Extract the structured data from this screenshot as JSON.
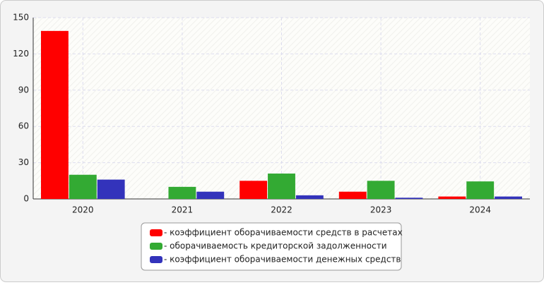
{
  "chart_data": {
    "type": "bar",
    "categories": [
      "2020",
      "2021",
      "2022",
      "2023",
      "2024"
    ],
    "series": [
      {
        "name": "- коэффициент оборачиваемости средств в расчетах",
        "color": "#ff0000",
        "values": [
          139,
          0,
          15,
          6,
          2
        ]
      },
      {
        "name": "- оборачиваемость кредиторской задолженности",
        "color": "#33aa33",
        "values": [
          20,
          10,
          21,
          15,
          14.5
        ]
      },
      {
        "name": "- коэффициент оборачиваемости денежных средств",
        "color": "#3333bb",
        "values": [
          16,
          6,
          3,
          1,
          2
        ]
      }
    ],
    "ylim": [
      0,
      150
    ],
    "yticks": [
      0,
      30,
      60,
      90,
      120,
      150
    ],
    "grid": true,
    "legend": "bottom"
  }
}
